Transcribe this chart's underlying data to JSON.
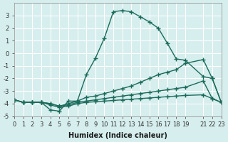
{
  "xlabel": "Humidex (Indice chaleur)",
  "ylabel": "",
  "background_color": "#d6eeee",
  "grid_color": "#ffffff",
  "line_color": "#1a6b5a",
  "xlim": [
    0,
    23
  ],
  "ylim": [
    -5,
    4
  ],
  "xticks": [
    0,
    1,
    2,
    3,
    4,
    5,
    6,
    7,
    8,
    9,
    10,
    11,
    12,
    13,
    14,
    15,
    16,
    17,
    18,
    19,
    21,
    22,
    23
  ],
  "yticks": [
    -5,
    -4,
    -3,
    -2,
    -1,
    0,
    1,
    2,
    3
  ],
  "series": [
    {
      "x": [
        0,
        1,
        2,
        3,
        4,
        5,
        6,
        7,
        8,
        9,
        10,
        11,
        12,
        13,
        14,
        15,
        16,
        17,
        18,
        19,
        21,
        22,
        23
      ],
      "y": [
        -3.7,
        -3.9,
        -3.9,
        -3.9,
        -4.5,
        -4.6,
        -3.8,
        -3.8,
        -1.7,
        -0.4,
        1.2,
        3.3,
        3.4,
        3.3,
        2.9,
        2.5,
        2.0,
        0.8,
        -0.45,
        -0.55,
        -1.85,
        -2.0,
        -3.9
      ]
    },
    {
      "x": [
        0,
        1,
        2,
        3,
        4,
        5,
        6,
        7,
        8,
        9,
        10,
        11,
        12,
        13,
        14,
        15,
        16,
        17,
        18,
        19,
        21,
        22,
        23
      ],
      "y": [
        -3.7,
        -3.9,
        -3.9,
        -3.9,
        -4.0,
        -4.2,
        -4.0,
        -3.8,
        -3.5,
        -3.4,
        -3.2,
        -3.0,
        -2.8,
        -2.6,
        -2.3,
        -2.0,
        -1.7,
        -1.5,
        -1.3,
        -0.8,
        -0.5,
        -2.0,
        -3.9
      ]
    },
    {
      "x": [
        0,
        1,
        2,
        3,
        4,
        5,
        6,
        7,
        8,
        9,
        10,
        11,
        12,
        13,
        14,
        15,
        16,
        17,
        18,
        19,
        21,
        22,
        23
      ],
      "y": [
        -3.7,
        -3.9,
        -3.9,
        -3.9,
        -4.0,
        -4.2,
        -4.1,
        -3.9,
        -3.8,
        -3.7,
        -3.6,
        -3.5,
        -3.4,
        -3.3,
        -3.2,
        -3.1,
        -3.0,
        -2.9,
        -2.8,
        -2.7,
        -2.2,
        -3.6,
        -3.9
      ]
    },
    {
      "x": [
        0,
        1,
        2,
        3,
        4,
        5,
        6,
        7,
        8,
        9,
        10,
        11,
        12,
        13,
        14,
        15,
        16,
        17,
        18,
        19,
        21,
        22,
        23
      ],
      "y": [
        -3.7,
        -3.9,
        -3.9,
        -3.9,
        -4.1,
        -4.3,
        -4.2,
        -4.0,
        -3.9,
        -3.85,
        -3.8,
        -3.75,
        -3.7,
        -3.65,
        -3.6,
        -3.55,
        -3.5,
        -3.45,
        -3.4,
        -3.35,
        -3.3,
        -3.6,
        -3.9
      ]
    }
  ]
}
